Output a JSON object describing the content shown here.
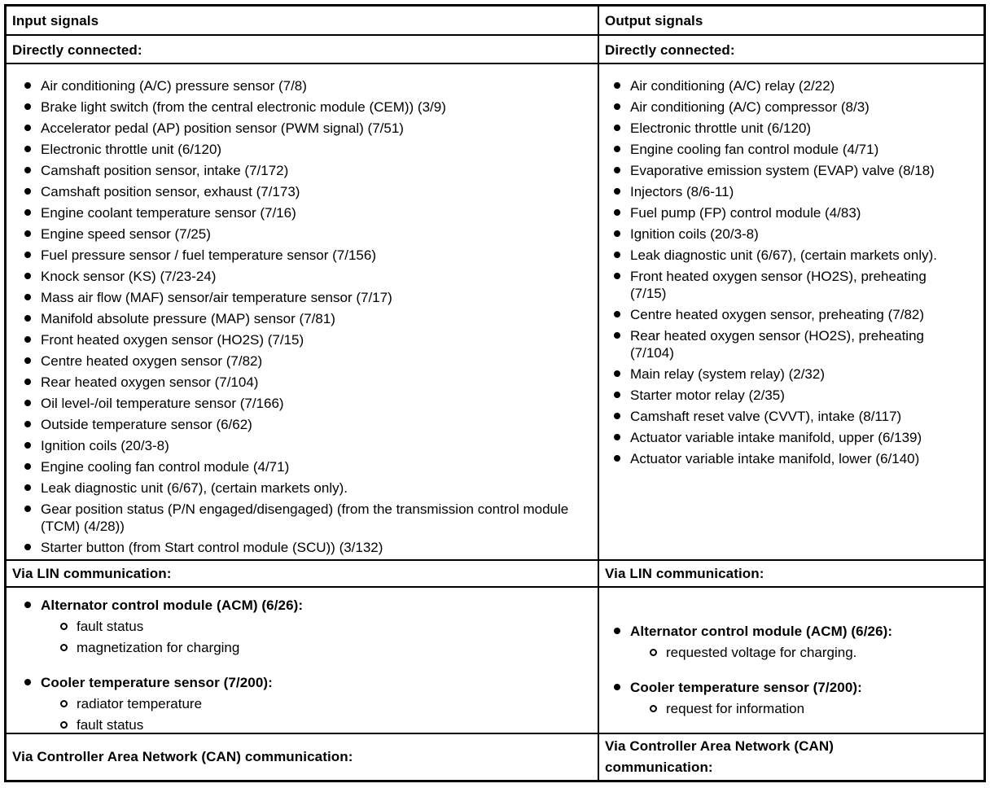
{
  "table": {
    "left": {
      "header": "Input signals",
      "directly_label": "Directly connected:",
      "items": [
        "Air conditioning (A/C) pressure sensor (7/8)",
        "Brake light switch (from the central electronic module (CEM)) (3/9)",
        "Accelerator pedal (AP) position sensor (PWM signal) (7/51)",
        "Electronic throttle unit (6/120)",
        "Camshaft position sensor, intake (7/172)",
        "Camshaft position sensor, exhaust (7/173)",
        "Engine coolant temperature sensor (7/16)",
        "Engine speed sensor (7/25)",
        "Fuel pressure sensor / fuel temperature sensor (7/156)",
        "Knock sensor (KS) (7/23-24)",
        "Mass air flow (MAF) sensor/air temperature sensor (7/17)",
        "Manifold absolute pressure (MAP) sensor (7/81)",
        "Front heated oxygen sensor (HO2S) (7/15)",
        "Centre heated oxygen sensor (7/82)",
        "Rear heated oxygen sensor (7/104)",
        "Oil level-/oil temperature sensor (7/166)",
        "Outside temperature sensor (6/62)",
        "Ignition coils (20/3-8)",
        "Engine cooling fan control module (4/71)",
        "Leak diagnostic unit (6/67), (certain markets only).",
        "Gear position status (P/N engaged/disengaged) (from the transmission control module (TCM) (4/28))",
        "Starter button (from Start control module (SCU)) (3/132)"
      ],
      "lin_label": "Via LIN communication:",
      "lin_groups": [
        {
          "title": "Alternator control module (ACM) (6/26):",
          "items": [
            "fault status",
            "magnetization for charging"
          ]
        },
        {
          "title": "Cooler temperature sensor (7/200):",
          "items": [
            "radiator temperature",
            "fault status"
          ]
        }
      ],
      "can_label": "Via Controller Area Network (CAN) communication:"
    },
    "right": {
      "header": "Output signals",
      "directly_label": "Directly connected:",
      "items": [
        "Air conditioning (A/C) relay (2/22)",
        "Air conditioning (A/C) compressor (8/3)",
        "Electronic throttle unit (6/120)",
        "Engine cooling fan control module (4/71)",
        "Evaporative emission system (EVAP) valve (8/18)",
        "Injectors (8/6-11)",
        "Fuel pump (FP) control module (4/83)",
        "Ignition coils (20/3-8)",
        "Leak diagnostic unit (6/67), (certain markets only).",
        "Front heated oxygen sensor (HO2S), preheating (7/15)",
        "Centre heated oxygen sensor, preheating (7/82)",
        "Rear heated oxygen sensor (HO2S), preheating (7/104)",
        "Main relay (system relay) (2/32)",
        "Starter motor relay (2/35)",
        "Camshaft reset valve (CVVT), intake (8/117)",
        "Actuator variable intake manifold, upper (6/139)",
        "Actuator variable intake manifold, lower (6/140)"
      ],
      "lin_label": "Via LIN communication:",
      "lin_groups": [
        {
          "title": "Alternator control module (ACM) (6/26):",
          "items": [
            "requested voltage for charging."
          ]
        },
        {
          "title": "Cooler temperature sensor (7/200):",
          "items": [
            "request for information"
          ]
        }
      ],
      "can_label": "Via Controller Area Network (CAN) communication:"
    },
    "colors": {
      "border": "#000000",
      "background": "#ffffff",
      "text": "#000000"
    }
  }
}
